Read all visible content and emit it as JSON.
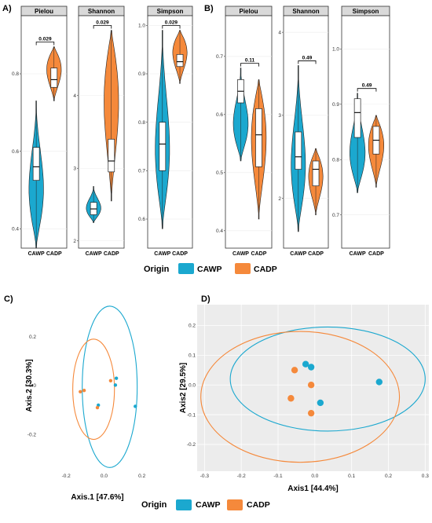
{
  "colors": {
    "CAWP": "#1ba8cf",
    "CADP": "#f5893b"
  },
  "legend_top": {
    "title": "Origin",
    "items": [
      "CAWP",
      "CADP"
    ]
  },
  "legend_bottom": {
    "title": "Origin",
    "items": [
      "CAWP",
      "CADP"
    ]
  },
  "chart_data": [
    {
      "type": "violin",
      "panel": "A)",
      "facets": [
        {
          "title": "Pielou",
          "yticks": [
            "0.4",
            "0.6",
            "0.8"
          ],
          "ylim": [
            0.35,
            0.95
          ],
          "groups": [
            {
              "name": "CAWP",
              "min": 0.35,
              "q1": 0.525,
              "median": 0.56,
              "q3": 0.61,
              "max": 0.73
            },
            {
              "name": "CADP",
              "min": 0.73,
              "q1": 0.765,
              "median": 0.785,
              "q3": 0.815,
              "max": 0.87
            }
          ],
          "pvalue": "0.029"
        },
        {
          "title": "Shannon",
          "yticks": [
            "2",
            "3",
            "4"
          ],
          "ylim": [
            1.9,
            5.1
          ],
          "groups": [
            {
              "name": "CAWP",
              "min": 2.25,
              "q1": 2.36,
              "median": 2.44,
              "q3": 2.53,
              "max": 2.75
            },
            {
              "name": "CADP",
              "min": 2.55,
              "q1": 2.95,
              "median": 3.1,
              "q3": 3.4,
              "max": 4.9
            }
          ],
          "pvalue": "0.029"
        },
        {
          "title": "Simpson",
          "yticks": [
            "0.6",
            "0.7",
            "0.8",
            "0.9",
            "1.0"
          ],
          "ylim": [
            0.54,
            1.02
          ],
          "groups": [
            {
              "name": "CAWP",
              "min": 0.58,
              "q1": 0.7,
              "median": 0.755,
              "q3": 0.8,
              "max": 0.99
            },
            {
              "name": "CADP",
              "min": 0.88,
              "q1": 0.915,
              "median": 0.925,
              "q3": 0.94,
              "max": 0.99
            }
          ],
          "pvalue": "0.029"
        }
      ],
      "xticks": [
        "CAWP",
        "CADP"
      ]
    },
    {
      "type": "violin",
      "panel": "B)",
      "facets": [
        {
          "title": "Pielou",
          "yticks": [
            "0.4",
            "0.5",
            "0.6",
            "0.7"
          ],
          "ylim": [
            0.37,
            0.77
          ],
          "groups": [
            {
              "name": "CAWP",
              "min": 0.52,
              "q1": 0.62,
              "median": 0.64,
              "q3": 0.66,
              "max": 0.68
            },
            {
              "name": "CADP",
              "min": 0.42,
              "q1": 0.51,
              "median": 0.565,
              "q3": 0.61,
              "max": 0.66
            }
          ],
          "pvalue": "0.11"
        },
        {
          "title": "Shannon",
          "yticks": [
            "2",
            "3",
            "4"
          ],
          "ylim": [
            1.4,
            4.2
          ],
          "groups": [
            {
              "name": "CAWP",
              "min": 1.6,
              "q1": 2.35,
              "median": 2.5,
              "q3": 2.8,
              "max": 3.6
            },
            {
              "name": "CADP",
              "min": 1.8,
              "q1": 2.15,
              "median": 2.35,
              "q3": 2.45,
              "max": 2.6
            }
          ],
          "pvalue": "0.49"
        },
        {
          "title": "Simpson",
          "yticks": [
            "0.7",
            "0.8",
            "0.9",
            "1.0"
          ],
          "ylim": [
            0.64,
            1.06
          ],
          "groups": [
            {
              "name": "CAWP",
              "min": 0.74,
              "q1": 0.84,
              "median": 0.885,
              "q3": 0.91,
              "max": 0.92
            },
            {
              "name": "CADP",
              "min": 0.75,
              "q1": 0.81,
              "median": 0.835,
              "q3": 0.86,
              "max": 0.88
            }
          ],
          "pvalue": "0.49"
        }
      ],
      "xticks": [
        "CAWP",
        "CADP"
      ]
    },
    {
      "type": "scatter",
      "panel": "C)",
      "xlabel": "Axis.1   [47.6%]",
      "ylabel": "Axis.2   [30.3%]",
      "xlim": [
        -0.35,
        0.28
      ],
      "ylim": [
        -0.35,
        0.35
      ],
      "xticks": [
        "-0.2",
        "0.0",
        "0.2"
      ],
      "yticks": [
        "-0.2",
        "0.0",
        "0.2"
      ],
      "series": [
        {
          "name": "CAWP",
          "points": [
            [
              0.065,
              0.03
            ],
            [
              0.06,
              0.002
            ],
            [
              -0.03,
              -0.08
            ],
            [
              0.165,
              -0.085
            ]
          ],
          "ellipse": {
            "cx": 0.03,
            "cy": -0.005,
            "rx": 0.145,
            "ry": 0.33
          }
        },
        {
          "name": "CADP",
          "points": [
            [
              0.035,
              0.02
            ],
            [
              -0.105,
              -0.02
            ],
            [
              -0.125,
              -0.025
            ],
            [
              -0.035,
              -0.09
            ]
          ],
          "ellipse": {
            "cx": -0.055,
            "cy": -0.015,
            "rx": 0.11,
            "ry": 0.205
          }
        }
      ]
    },
    {
      "type": "scatter",
      "panel": "D)",
      "xlabel": "Axis1   [44.4%]",
      "ylabel": "Axis2   [29.5%]",
      "xlim": [
        -0.32,
        0.31
      ],
      "ylim": [
        -0.29,
        0.27
      ],
      "xticks": [
        "-0.3",
        "-0.2",
        "-0.1",
        "0.0",
        "0.1",
        "0.2",
        "0.3"
      ],
      "yticks": [
        "-0.2",
        "-0.1",
        "0.0",
        "0.1",
        "0.2"
      ],
      "series": [
        {
          "name": "CAWP",
          "points": [
            [
              -0.025,
              0.07
            ],
            [
              -0.01,
              0.06
            ],
            [
              0.175,
              0.01
            ],
            [
              0.015,
              -0.06
            ]
          ],
          "ellipse": {
            "cx": 0.035,
            "cy": 0.02,
            "rx": 0.265,
            "ry": 0.175
          }
        },
        {
          "name": "CADP",
          "points": [
            [
              -0.055,
              0.05
            ],
            [
              -0.01,
              0.0
            ],
            [
              -0.065,
              -0.045
            ],
            [
              -0.01,
              -0.095
            ]
          ],
          "ellipse": {
            "cx": -0.04,
            "cy": -0.04,
            "rx": 0.27,
            "ry": 0.22
          }
        }
      ]
    }
  ]
}
